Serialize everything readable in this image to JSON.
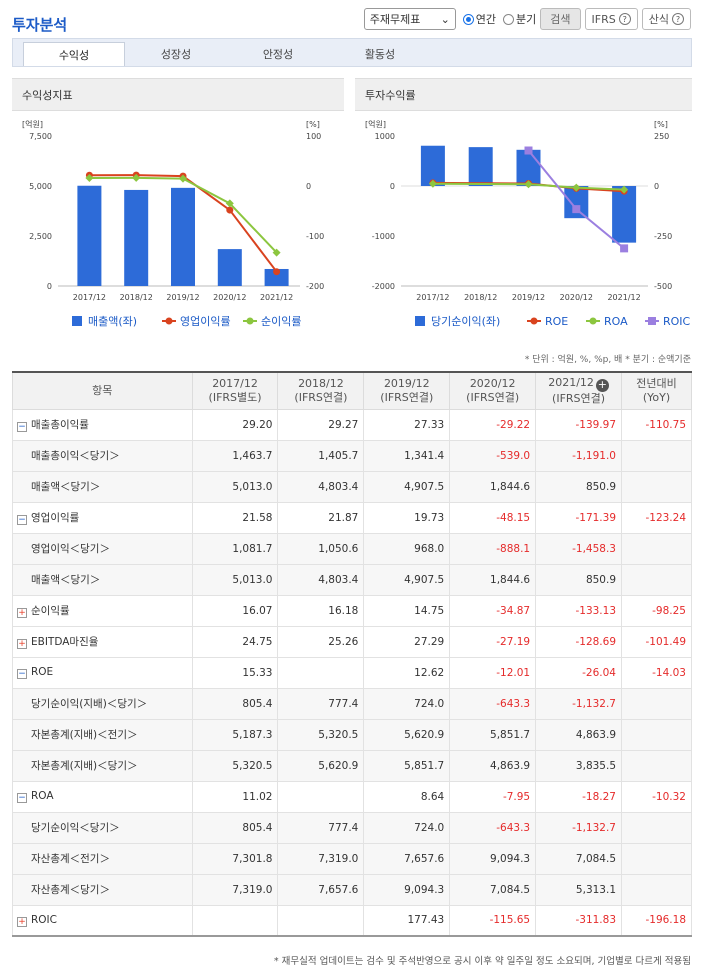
{
  "page_title": "투자분석",
  "controls": {
    "select_value": "주재무제표",
    "radio_annual": "연간",
    "radio_quarter": "분기",
    "search_label": "검색",
    "ifrs_label": "IFRS",
    "formula_label": "산식",
    "question_glyph": "?"
  },
  "tabs": [
    "수익성",
    "성장성",
    "안정성",
    "활동성"
  ],
  "left_chart": {
    "panel_title": "수익성지표",
    "chart_data": {
      "type": "bar+line",
      "title": "수익성지표",
      "left_unit": "[억원]",
      "right_unit": "[%]",
      "categories": [
        "2017/12",
        "2018/12",
        "2019/12",
        "2020/12",
        "2021/12"
      ],
      "left_ticks": [
        "7,500",
        "5,000",
        "2,500",
        "0"
      ],
      "right_ticks": [
        "100",
        "0",
        "-100",
        "-200"
      ],
      "left_range": [
        0,
        7500
      ],
      "right_range": [
        -200,
        100
      ],
      "series": [
        {
          "name": "매출액(좌)",
          "type": "bar",
          "axis": "left",
          "color": "#2d6bd8",
          "values": [
            5013.0,
            4803.4,
            4907.5,
            1844.6,
            850.9
          ]
        },
        {
          "name": "영업이익률",
          "type": "line",
          "axis": "right",
          "color": "#d9431f",
          "values": [
            21.58,
            21.87,
            19.73,
            -48.15,
            -171.39
          ]
        },
        {
          "name": "순이익률",
          "type": "line",
          "axis": "right",
          "color": "#8cc63f",
          "values": [
            16.07,
            16.18,
            14.75,
            -34.87,
            -133.13
          ]
        }
      ]
    }
  },
  "right_chart": {
    "panel_title": "투자수익률",
    "chart_data": {
      "type": "bar+line",
      "title": "투자수익률",
      "left_unit": "[억원]",
      "right_unit": "[%]",
      "categories": [
        "2017/12",
        "2018/12",
        "2019/12",
        "2020/12",
        "2021/12"
      ],
      "left_ticks": [
        "1000",
        "0",
        "-1000",
        "-2000"
      ],
      "right_ticks": [
        "250",
        "0",
        "-250",
        "-500"
      ],
      "left_range": [
        -2000,
        1000
      ],
      "right_range": [
        -500,
        250
      ],
      "series": [
        {
          "name": "당기순이익(좌)",
          "type": "bar",
          "axis": "left",
          "color": "#2d6bd8",
          "values": [
            805.4,
            777.4,
            724.0,
            -643.3,
            -1132.7
          ]
        },
        {
          "name": "ROE",
          "type": "line",
          "axis": "right",
          "color": "#d9431f",
          "values": [
            15.33,
            null,
            12.62,
            -12.01,
            -26.04
          ]
        },
        {
          "name": "ROA",
          "type": "line",
          "axis": "right",
          "color": "#8cc63f",
          "values": [
            11.02,
            null,
            8.64,
            -7.95,
            -18.27
          ]
        },
        {
          "name": "ROIC",
          "type": "line",
          "axis": "right",
          "color": "#9b7fe0",
          "values": [
            null,
            null,
            177.43,
            -115.65,
            -311.83
          ]
        }
      ]
    }
  },
  "unit_note": "* 단위 : 억원, %, %p, 배   * 분기 : 순액기준",
  "table": {
    "header_item": "항목",
    "columns": [
      {
        "period": "2017/12",
        "basis": "(IFRS별도)"
      },
      {
        "period": "2018/12",
        "basis": "(IFRS연결)"
      },
      {
        "period": "2019/12",
        "basis": "(IFRS연결)"
      },
      {
        "period": "2020/12",
        "basis": "(IFRS연결)"
      },
      {
        "period": "2021/12",
        "basis": "(IFRS연결)"
      }
    ],
    "header_yoy": "전년대비",
    "header_yoy2": "(YoY)",
    "plus_glyph": "+",
    "rows": [
      {
        "label": "매출총이익률",
        "level": "main",
        "toggle": "−",
        "values": [
          "29.20",
          "29.27",
          "27.33",
          "-29.22",
          "-139.97"
        ],
        "yoy": "-110.75"
      },
      {
        "label": "매출총이익＜당기＞",
        "level": "sub",
        "values": [
          "1,463.7",
          "1,405.7",
          "1,341.4",
          "-539.0",
          "-1,191.0"
        ],
        "yoy": ""
      },
      {
        "label": "매출액＜당기＞",
        "level": "sub",
        "values": [
          "5,013.0",
          "4,803.4",
          "4,907.5",
          "1,844.6",
          "850.9"
        ],
        "yoy": ""
      },
      {
        "label": "영업이익률",
        "level": "main",
        "toggle": "−",
        "values": [
          "21.58",
          "21.87",
          "19.73",
          "-48.15",
          "-171.39"
        ],
        "yoy": "-123.24"
      },
      {
        "label": "영업이익＜당기＞",
        "level": "sub",
        "values": [
          "1,081.7",
          "1,050.6",
          "968.0",
          "-888.1",
          "-1,458.3"
        ],
        "yoy": ""
      },
      {
        "label": "매출액＜당기＞",
        "level": "sub",
        "values": [
          "5,013.0",
          "4,803.4",
          "4,907.5",
          "1,844.6",
          "850.9"
        ],
        "yoy": ""
      },
      {
        "label": "순이익률",
        "level": "main",
        "toggle": "+",
        "values": [
          "16.07",
          "16.18",
          "14.75",
          "-34.87",
          "-133.13"
        ],
        "yoy": "-98.25"
      },
      {
        "label": "EBITDA마진율",
        "level": "main",
        "toggle": "+",
        "values": [
          "24.75",
          "25.26",
          "27.29",
          "-27.19",
          "-128.69"
        ],
        "yoy": "-101.49"
      },
      {
        "label": "ROE",
        "level": "main",
        "toggle": "−",
        "values": [
          "15.33",
          "",
          "12.62",
          "-12.01",
          "-26.04"
        ],
        "yoy": "-14.03"
      },
      {
        "label": "당기순이익(지배)＜당기＞",
        "level": "sub",
        "values": [
          "805.4",
          "777.4",
          "724.0",
          "-643.3",
          "-1,132.7"
        ],
        "yoy": ""
      },
      {
        "label": "자본총계(지배)＜전기＞",
        "level": "sub",
        "values": [
          "5,187.3",
          "5,320.5",
          "5,620.9",
          "5,851.7",
          "4,863.9"
        ],
        "yoy": ""
      },
      {
        "label": "자본총계(지배)＜당기＞",
        "level": "sub",
        "values": [
          "5,320.5",
          "5,620.9",
          "5,851.7",
          "4,863.9",
          "3,835.5"
        ],
        "yoy": ""
      },
      {
        "label": "ROA",
        "level": "main",
        "toggle": "−",
        "values": [
          "11.02",
          "",
          "8.64",
          "-7.95",
          "-18.27"
        ],
        "yoy": "-10.32"
      },
      {
        "label": "당기순이익＜당기＞",
        "level": "sub",
        "values": [
          "805.4",
          "777.4",
          "724.0",
          "-643.3",
          "-1,132.7"
        ],
        "yoy": ""
      },
      {
        "label": "자산총계＜전기＞",
        "level": "sub",
        "values": [
          "7,301.8",
          "7,319.0",
          "7,657.6",
          "9,094.3",
          "7,084.5"
        ],
        "yoy": ""
      },
      {
        "label": "자산총계＜당기＞",
        "level": "sub",
        "values": [
          "7,319.0",
          "7,657.6",
          "9,094.3",
          "7,084.5",
          "5,313.1"
        ],
        "yoy": ""
      },
      {
        "label": "ROIC",
        "level": "main",
        "toggle": "+",
        "values": [
          "",
          "",
          "177.43",
          "-115.65",
          "-311.83"
        ],
        "yoy": "-196.18"
      }
    ]
  },
  "footnote": "* 재무실적 업데이트는 검수 및 주석반영으로 공시 이후 약 일주일 정도 소요되며, 기업별로 다르게 적용됨"
}
